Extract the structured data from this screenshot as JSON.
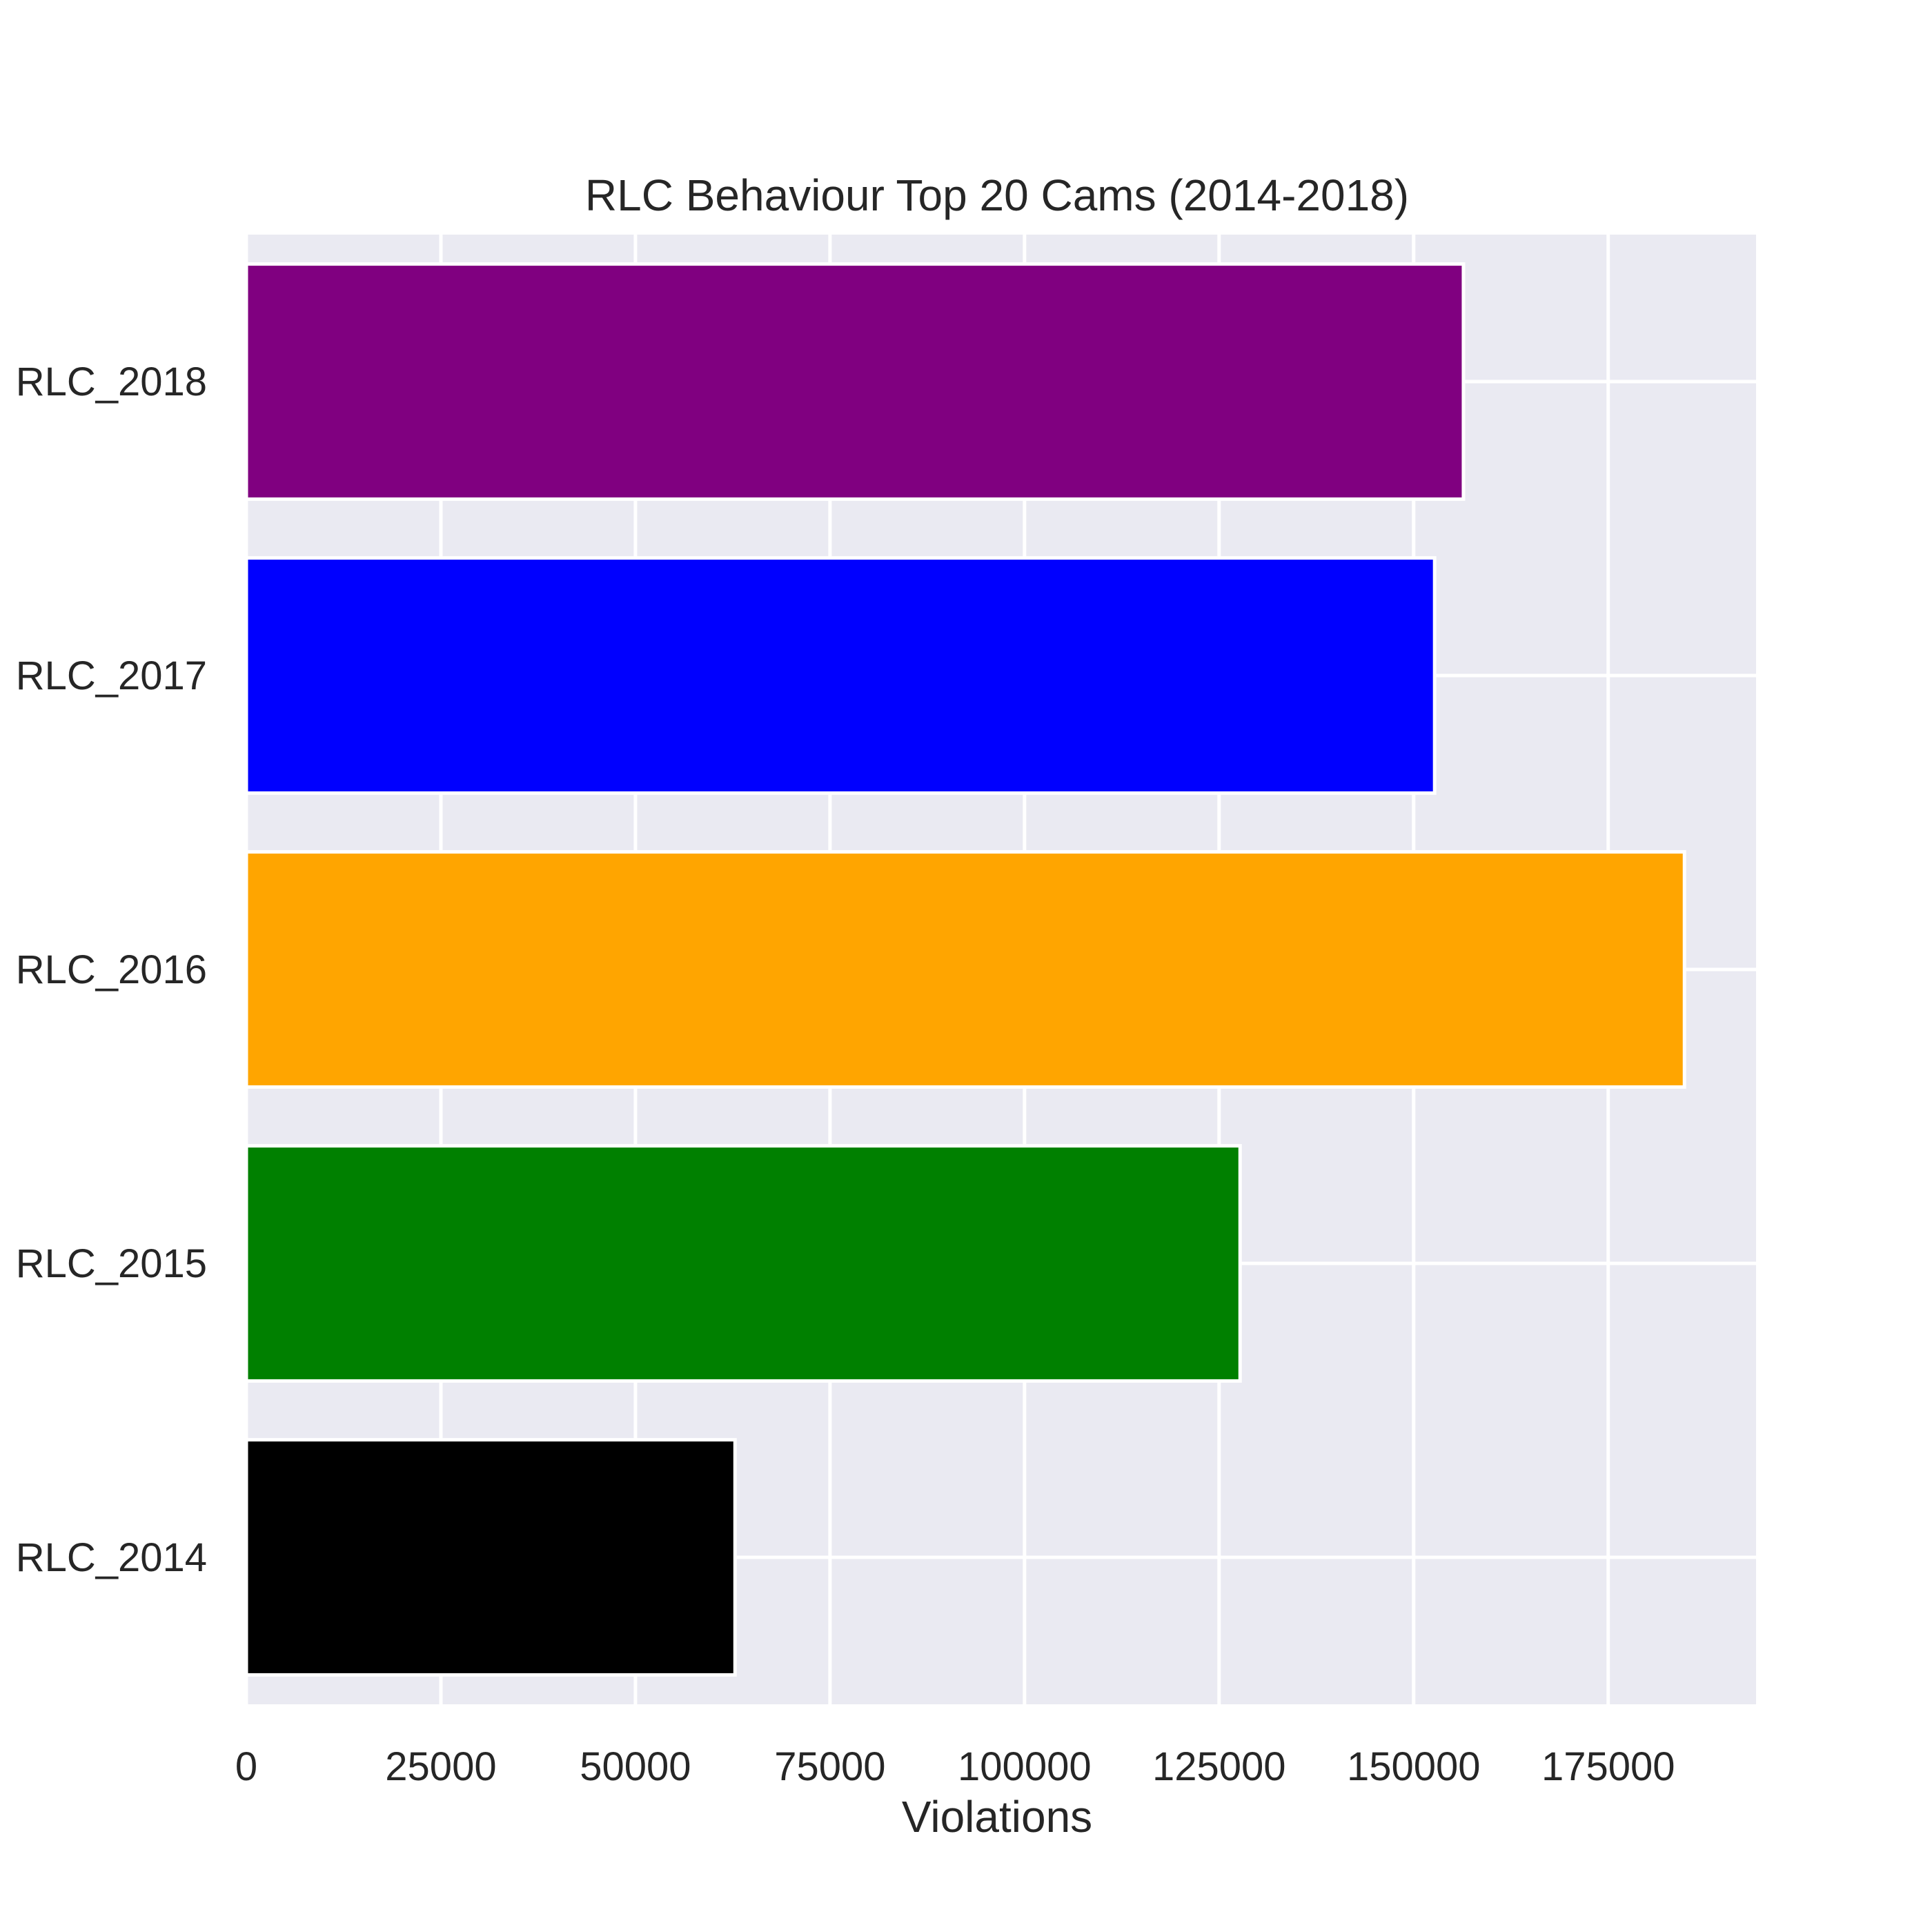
{
  "chart_data": {
    "type": "bar",
    "orientation": "horizontal",
    "title": "RLC Behaviour Top 20 Cams (2014-2018)",
    "xlabel": "Violations",
    "ylabel": "",
    "categories": [
      "RLC_2014",
      "RLC_2015",
      "RLC_2016",
      "RLC_2017",
      "RLC_2018"
    ],
    "values": [
      62800,
      127700,
      184800,
      152700,
      156400
    ],
    "colors": [
      "#000000",
      "#008000",
      "#ffa500",
      "#0000ff",
      "#800080"
    ],
    "xlim": [
      0,
      194000
    ],
    "xticks": [
      0,
      25000,
      50000,
      75000,
      100000,
      125000,
      150000,
      175000
    ],
    "xtick_labels": [
      "0",
      "25000",
      "50000",
      "75000",
      "100000",
      "125000",
      "150000",
      "175000"
    ],
    "grid": true,
    "background": "#eaeaf2",
    "gridColor": "#ffffff"
  }
}
